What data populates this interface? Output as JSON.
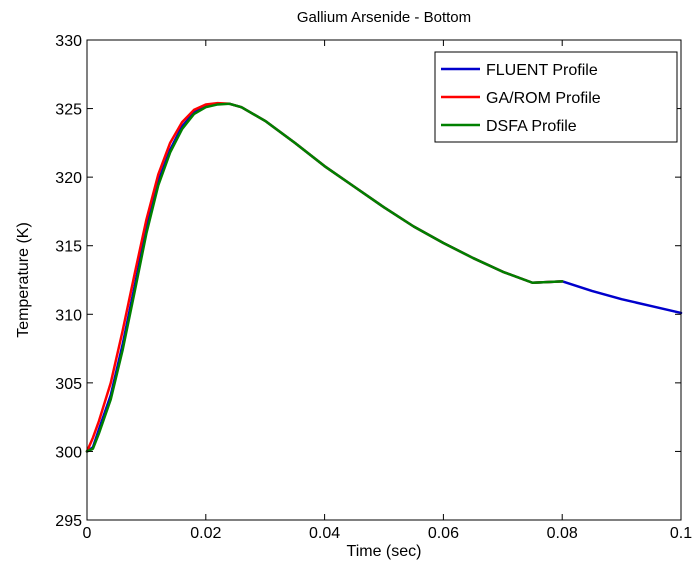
{
  "chart_data": {
    "type": "line",
    "title": "Gallium Arsenide - Bottom",
    "xlabel": "Time (sec)",
    "ylabel": "Temperature (K)",
    "xlim": [
      0,
      0.1
    ],
    "ylim": [
      295,
      330
    ],
    "xticks": [
      0,
      0.02,
      0.04,
      0.06,
      0.08,
      0.1
    ],
    "xtick_labels": [
      "0",
      "0.02",
      "0.04",
      "0.06",
      "0.08",
      "0.1"
    ],
    "yticks": [
      295,
      300,
      305,
      310,
      315,
      320,
      325,
      330
    ],
    "ytick_labels": [
      "295",
      "300",
      "305",
      "310",
      "315",
      "320",
      "325",
      "330"
    ],
    "grid": false,
    "legend_position": "top-right",
    "series": [
      {
        "name": "FLUENT Profile",
        "color": "#0000cc",
        "x": [
          0,
          0.001,
          0.002,
          0.004,
          0.006,
          0.008,
          0.01,
          0.012,
          0.014,
          0.016,
          0.018,
          0.02,
          0.022,
          0.024,
          0.026,
          0.03,
          0.035,
          0.04,
          0.045,
          0.05,
          0.055,
          0.06,
          0.065,
          0.07,
          0.075,
          0.08,
          0.085,
          0.09,
          0.095,
          0.1
        ],
        "y": [
          300.0,
          300.3,
          301.6,
          304.1,
          307.8,
          312.0,
          316.3,
          319.7,
          322.0,
          323.7,
          324.7,
          325.2,
          325.35,
          325.35,
          325.1,
          324.1,
          322.5,
          320.8,
          319.3,
          317.8,
          316.4,
          315.2,
          314.1,
          313.1,
          312.3,
          312.4,
          311.7,
          311.1,
          310.6,
          310.1
        ]
      },
      {
        "name": "GA/ROM Profile",
        "color": "#ff0000",
        "x": [
          0,
          0.001,
          0.002,
          0.004,
          0.006,
          0.008,
          0.01,
          0.012,
          0.014,
          0.016,
          0.018,
          0.02,
          0.022,
          0.024,
          0.026,
          0.03,
          0.035,
          0.04,
          0.045,
          0.05,
          0.055,
          0.06,
          0.065,
          0.07,
          0.075,
          0.08
        ],
        "y": [
          300.0,
          301.0,
          302.2,
          305.0,
          308.8,
          312.9,
          316.9,
          320.2,
          322.5,
          324.0,
          324.9,
          325.3,
          325.4,
          325.35,
          325.1,
          324.1,
          322.5,
          320.8,
          319.3,
          317.8,
          316.4,
          315.2,
          314.1,
          313.1,
          312.3,
          312.4
        ]
      },
      {
        "name": "DSFA Profile",
        "color": "#008000",
        "x": [
          0,
          0.001,
          0.002,
          0.004,
          0.006,
          0.008,
          0.01,
          0.012,
          0.014,
          0.016,
          0.018,
          0.02,
          0.022,
          0.024,
          0.026,
          0.03,
          0.035,
          0.04,
          0.045,
          0.05,
          0.055,
          0.06,
          0.065,
          0.07,
          0.075,
          0.08
        ],
        "y": [
          300.0,
          300.2,
          301.3,
          303.8,
          307.4,
          311.6,
          315.9,
          319.4,
          321.8,
          323.5,
          324.6,
          325.1,
          325.3,
          325.35,
          325.1,
          324.1,
          322.5,
          320.8,
          319.3,
          317.8,
          316.4,
          315.2,
          314.1,
          313.1,
          312.3,
          312.4
        ]
      }
    ]
  }
}
